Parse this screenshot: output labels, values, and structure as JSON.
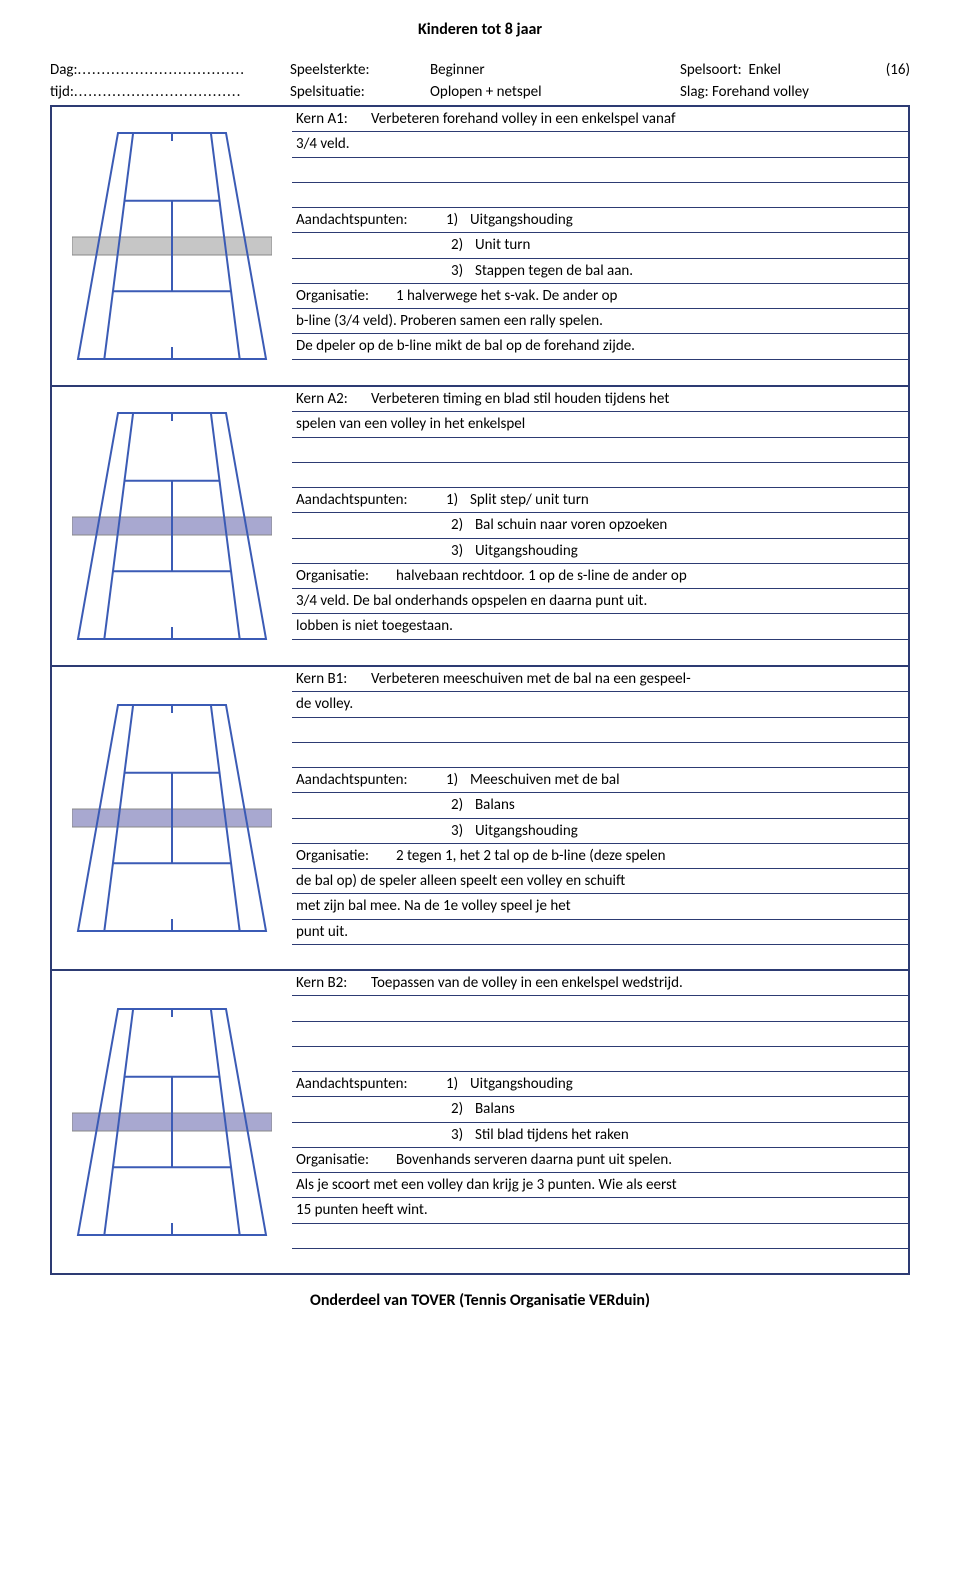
{
  "page_title": "Kinderen tot 8 jaar",
  "header": {
    "dag_label": "Dag:",
    "tijd_label": "tijd:",
    "speelsterkte_label": "Speelsterkte:",
    "speelsterkte_value": "Beginner",
    "spelsoort_label": "Spelsoort:",
    "spelsoort_value": "Enkel",
    "number": "(16)",
    "spelsituatie_label": "Spelsituatie:",
    "spelsituatie_value": "Oplopen + netspel",
    "slag_label": "Slag:",
    "slag_value": "Forehand volley"
  },
  "sections": [
    {
      "kern_label": "Kern A1:",
      "kern_line1": "Verbeteren forehand volley in een enkelspel vanaf",
      "kern_line2": "3/4 veld.",
      "ap_label": "Aandachtspunten:",
      "ap1_num": "1)",
      "ap1": "Uitgangshouding",
      "ap2_num": "2)",
      "ap2": "Unit turn",
      "ap3_num": "3)",
      "ap3": "Stappen tegen de bal aan.",
      "org_label": "Organisatie:",
      "org_lines": [
        "1 halverwege het s-vak. De ander op",
        "b-line (3/4 veld). Proberen samen een rally spelen.",
        "De dpeler op de b-line mikt de bal op de forehand zijde."
      ],
      "net_fill": "#c6c6c6"
    },
    {
      "kern_label": "Kern A2:",
      "kern_line1": "Verbeteren timing en blad stil houden tijdens het",
      "kern_line2": "spelen van een volley in het enkelspel",
      "ap_label": "Aandachtspunten:",
      "ap1_num": "1)",
      "ap1": "Split step/ unit turn",
      "ap2_num": "2)",
      "ap2": "Bal schuin naar voren opzoeken",
      "ap3_num": "3)",
      "ap3": "Uitgangshouding",
      "org_label": "Organisatie:",
      "org_lines": [
        "halvebaan rechtdoor. 1 op de s-line de ander op",
        "3/4 veld. De bal onderhands opspelen en daarna punt uit.",
        "lobben is niet toegestaan."
      ],
      "net_fill": "#a8a8d0"
    },
    {
      "kern_label": "Kern B1:",
      "kern_line1": "Verbeteren meeschuiven met de bal na een gespeel-",
      "kern_line2": "de volley.",
      "ap_label": "Aandachtspunten:",
      "ap1_num": "1)",
      "ap1": "Meeschuiven met de bal",
      "ap2_num": "2)",
      "ap2": "Balans",
      "ap3_num": "3)",
      "ap3": "Uitgangshouding",
      "org_label": "Organisatie:",
      "org_lines": [
        "2 tegen 1, het 2 tal op de b-line (deze spelen",
        "de bal op) de speler alleen speelt een volley en schuift",
        "met zijn bal mee. Na de 1e volley speel je het",
        "punt uit."
      ],
      "net_fill": "#a8a8d0"
    },
    {
      "kern_label": "Kern B2:",
      "kern_line1": "Toepassen van de volley in een enkelspel wedstrijd.",
      "kern_line2": "",
      "ap_label": "Aandachtspunten:",
      "ap1_num": "1)",
      "ap1": "Uitgangshouding",
      "ap2_num": "2)",
      "ap2": "Balans",
      "ap3_num": "3)",
      "ap3": "Stil blad tijdens het raken",
      "org_label": "Organisatie:",
      "org_lines": [
        "Bovenhands serveren daarna punt uit spelen.",
        "Als je scoort met een volley dan krijg je 3 punten. Wie als eerst",
        "15 punten heeft wint."
      ],
      "net_fill": "#a8a8d0"
    }
  ],
  "footer": "Onderdeel van TOVER (Tennis Organisatie VERduin)",
  "court": {
    "stroke": "#3b5bb5",
    "stroke_width": 2
  }
}
